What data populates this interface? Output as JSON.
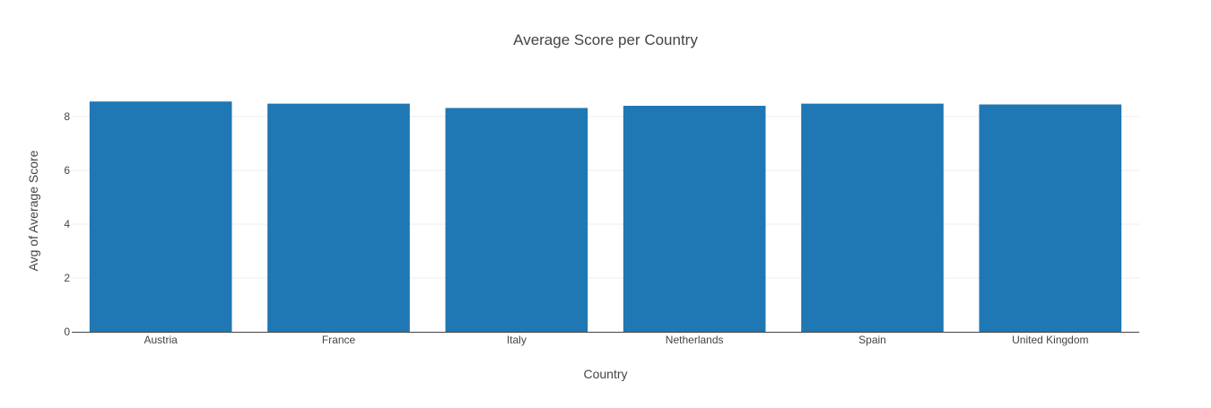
{
  "chart_data": {
    "type": "bar",
    "title": "Average Score per Country",
    "xlabel": "Country",
    "ylabel": "Avg of Average Score",
    "categories": [
      "Austria",
      "France",
      "Italy",
      "Netherlands",
      "Spain",
      "United Kingdom"
    ],
    "values": [
      8.56,
      8.48,
      8.32,
      8.4,
      8.48,
      8.45
    ],
    "ylim": [
      0,
      9
    ],
    "yticks": [
      0,
      2,
      4,
      6,
      8
    ],
    "grid": true,
    "legend": "none",
    "bar_color": "#1f77b4",
    "axis_color": "#444444",
    "grid_color": "#eeeeee"
  }
}
